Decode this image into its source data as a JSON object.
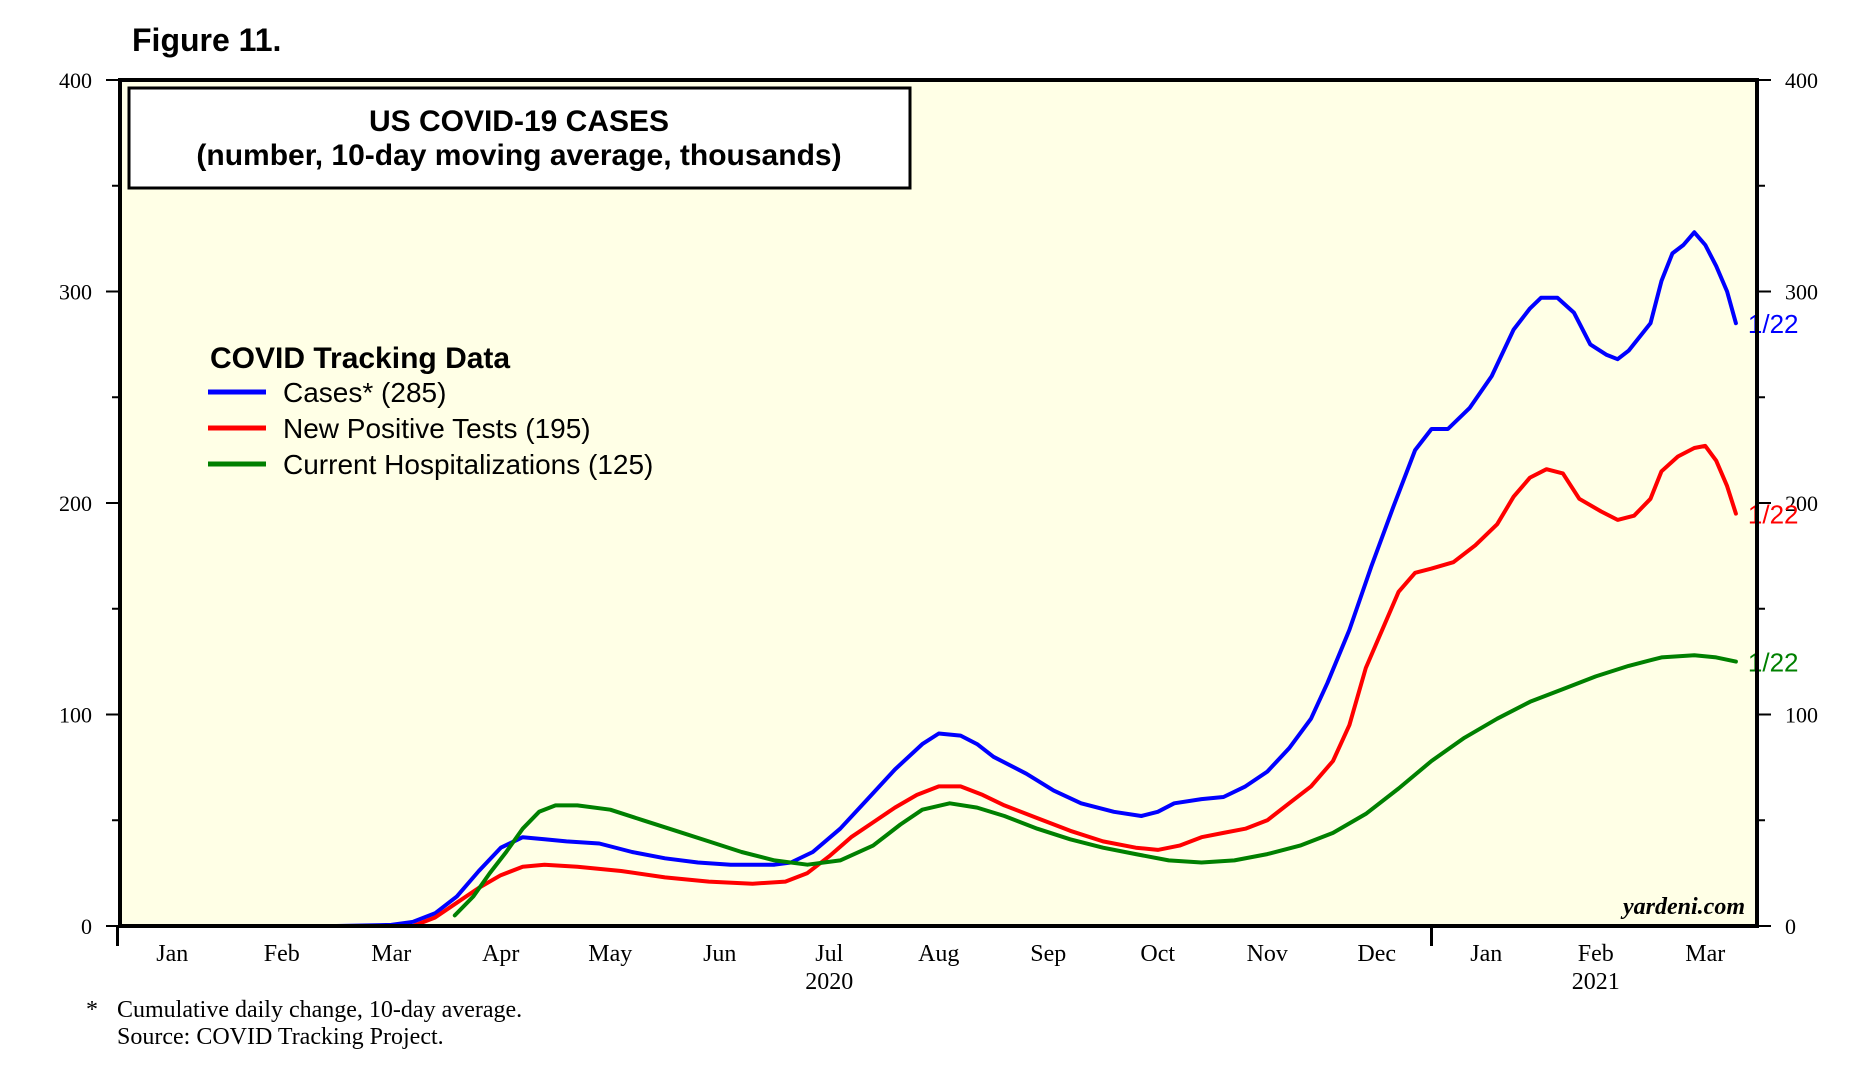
{
  "figure_label": "Figure 11.",
  "footnote": {
    "marker": "*",
    "line1": "Cumulative daily change, 10-day average.",
    "line2": "Source: COVID Tracking Project."
  },
  "chart_data": {
    "type": "line",
    "title": "US COVID-19 CASES",
    "subtitle": "(number, 10-day moving average, thousands)",
    "legend_title": "COVID Tracking Data",
    "legend_position": "upper-left",
    "watermark": "yardeni.com",
    "grid": false,
    "background": "#ffffe6",
    "ylim": [
      0,
      400
    ],
    "y_ticks": [
      "0",
      "100",
      "200",
      "300",
      "400"
    ],
    "x_month_labels": [
      "Jan",
      "Feb",
      "Mar",
      "Apr",
      "May",
      "Jun",
      "Jul",
      "Aug",
      "Sep",
      "Oct",
      "Nov",
      "Dec",
      "Jan",
      "Feb",
      "Mar"
    ],
    "year_labels": [
      {
        "label": "2020",
        "under": "Jul"
      },
      {
        "label": "2021",
        "under": "Feb"
      }
    ],
    "x_unit": "months since 2020-01-01",
    "series": [
      {
        "name": "Cases* (285)",
        "color": "#0000ff",
        "end_label": "1/22",
        "points": [
          [
            0.85,
            0
          ],
          [
            2.0,
            0
          ],
          [
            2.5,
            0.5
          ],
          [
            2.7,
            2
          ],
          [
            2.9,
            6
          ],
          [
            3.1,
            14
          ],
          [
            3.3,
            26
          ],
          [
            3.5,
            37
          ],
          [
            3.7,
            42
          ],
          [
            3.9,
            41
          ],
          [
            4.1,
            40
          ],
          [
            4.4,
            39
          ],
          [
            4.7,
            35
          ],
          [
            5.0,
            32
          ],
          [
            5.3,
            30
          ],
          [
            5.6,
            29
          ],
          [
            6.0,
            29
          ],
          [
            6.15,
            30
          ],
          [
            6.35,
            35
          ],
          [
            6.6,
            46
          ],
          [
            6.85,
            60
          ],
          [
            7.1,
            74
          ],
          [
            7.35,
            86
          ],
          [
            7.5,
            91
          ],
          [
            7.7,
            90
          ],
          [
            7.85,
            86
          ],
          [
            8.0,
            80
          ],
          [
            8.3,
            72
          ],
          [
            8.55,
            64
          ],
          [
            8.8,
            58
          ],
          [
            9.1,
            54
          ],
          [
            9.35,
            52
          ],
          [
            9.5,
            54
          ],
          [
            9.65,
            58
          ],
          [
            9.9,
            60
          ],
          [
            10.1,
            61
          ],
          [
            10.3,
            66
          ],
          [
            10.5,
            73
          ],
          [
            10.7,
            84
          ],
          [
            10.9,
            98
          ],
          [
            11.05,
            115
          ],
          [
            11.25,
            140
          ],
          [
            11.45,
            170
          ],
          [
            11.65,
            198
          ],
          [
            11.85,
            225
          ],
          [
            12.0,
            235
          ],
          [
            12.15,
            235
          ],
          [
            12.35,
            245
          ],
          [
            12.55,
            260
          ],
          [
            12.75,
            282
          ],
          [
            12.9,
            292
          ],
          [
            13.0,
            297
          ],
          [
            13.15,
            297
          ],
          [
            13.3,
            290
          ],
          [
            13.45,
            275
          ],
          [
            13.6,
            270
          ],
          [
            13.7,
            268
          ],
          [
            13.8,
            272
          ],
          [
            14.0,
            285
          ],
          [
            14.1,
            305
          ],
          [
            14.2,
            318
          ],
          [
            14.3,
            322
          ],
          [
            14.4,
            328
          ],
          [
            14.5,
            322
          ],
          [
            14.6,
            312
          ],
          [
            14.7,
            300
          ],
          [
            14.78,
            285
          ]
        ]
      },
      {
        "name": "New Positive Tests (195)",
        "color": "#ff0000",
        "end_label": "1/22",
        "points": [
          [
            0.75,
            0
          ],
          [
            1.0,
            0
          ],
          [
            2.7,
            0
          ],
          [
            2.9,
            4
          ],
          [
            3.1,
            11
          ],
          [
            3.3,
            18
          ],
          [
            3.5,
            24
          ],
          [
            3.7,
            28
          ],
          [
            3.9,
            29
          ],
          [
            4.2,
            28
          ],
          [
            4.6,
            26
          ],
          [
            5.0,
            23
          ],
          [
            5.4,
            21
          ],
          [
            5.8,
            20
          ],
          [
            6.1,
            21
          ],
          [
            6.3,
            25
          ],
          [
            6.5,
            33
          ],
          [
            6.7,
            42
          ],
          [
            6.9,
            49
          ],
          [
            7.1,
            56
          ],
          [
            7.3,
            62
          ],
          [
            7.5,
            66
          ],
          [
            7.7,
            66
          ],
          [
            7.9,
            62
          ],
          [
            8.1,
            57
          ],
          [
            8.4,
            51
          ],
          [
            8.7,
            45
          ],
          [
            9.0,
            40
          ],
          [
            9.3,
            37
          ],
          [
            9.5,
            36
          ],
          [
            9.7,
            38
          ],
          [
            9.9,
            42
          ],
          [
            10.1,
            44
          ],
          [
            10.3,
            46
          ],
          [
            10.5,
            50
          ],
          [
            10.7,
            58
          ],
          [
            10.9,
            66
          ],
          [
            11.1,
            78
          ],
          [
            11.25,
            95
          ],
          [
            11.4,
            122
          ],
          [
            11.55,
            140
          ],
          [
            11.7,
            158
          ],
          [
            11.85,
            167
          ],
          [
            12.0,
            169
          ],
          [
            12.2,
            172
          ],
          [
            12.4,
            180
          ],
          [
            12.6,
            190
          ],
          [
            12.75,
            203
          ],
          [
            12.9,
            212
          ],
          [
            13.05,
            216
          ],
          [
            13.2,
            214
          ],
          [
            13.35,
            202
          ],
          [
            13.55,
            196
          ],
          [
            13.7,
            192
          ],
          [
            13.85,
            194
          ],
          [
            14.0,
            202
          ],
          [
            14.1,
            215
          ],
          [
            14.25,
            222
          ],
          [
            14.4,
            226
          ],
          [
            14.5,
            227
          ],
          [
            14.6,
            220
          ],
          [
            14.7,
            208
          ],
          [
            14.78,
            195
          ]
        ]
      },
      {
        "name": "Current Hospitalizations (125)",
        "color": "#008000",
        "end_label": "1/22",
        "points": [
          [
            3.08,
            5
          ],
          [
            3.25,
            14
          ],
          [
            3.4,
            25
          ],
          [
            3.55,
            35
          ],
          [
            3.7,
            46
          ],
          [
            3.85,
            54
          ],
          [
            4.0,
            57
          ],
          [
            4.2,
            57
          ],
          [
            4.5,
            55
          ],
          [
            4.8,
            50
          ],
          [
            5.1,
            45
          ],
          [
            5.4,
            40
          ],
          [
            5.7,
            35
          ],
          [
            6.0,
            31
          ],
          [
            6.3,
            29
          ],
          [
            6.6,
            31
          ],
          [
            6.9,
            38
          ],
          [
            7.15,
            48
          ],
          [
            7.35,
            55
          ],
          [
            7.6,
            58
          ],
          [
            7.85,
            56
          ],
          [
            8.1,
            52
          ],
          [
            8.4,
            46
          ],
          [
            8.7,
            41
          ],
          [
            9.0,
            37
          ],
          [
            9.3,
            34
          ],
          [
            9.6,
            31
          ],
          [
            9.9,
            30
          ],
          [
            10.2,
            31
          ],
          [
            10.5,
            34
          ],
          [
            10.8,
            38
          ],
          [
            11.1,
            44
          ],
          [
            11.4,
            53
          ],
          [
            11.7,
            65
          ],
          [
            12.0,
            78
          ],
          [
            12.3,
            89
          ],
          [
            12.6,
            98
          ],
          [
            12.9,
            106
          ],
          [
            13.2,
            112
          ],
          [
            13.5,
            118
          ],
          [
            13.8,
            123
          ],
          [
            14.1,
            127
          ],
          [
            14.4,
            128
          ],
          [
            14.6,
            127
          ],
          [
            14.78,
            125
          ]
        ]
      }
    ]
  }
}
